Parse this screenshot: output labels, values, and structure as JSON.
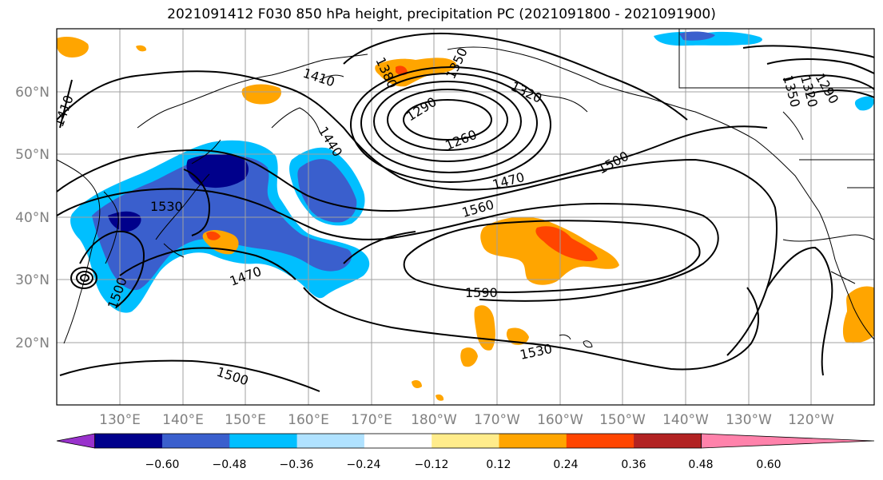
{
  "title": "2021091412 F030 850 hPa height, precipitation PC (2021091800 - 2021091900)",
  "lon_labels": [
    "130°E",
    "140°E",
    "150°E",
    "160°E",
    "170°E",
    "180°W",
    "170°W",
    "160°W",
    "150°W",
    "140°W",
    "130°W",
    "120°W"
  ],
  "lat_labels": [
    "60°N",
    "50°N",
    "40°N",
    "30°N",
    "20°N"
  ],
  "contour_labels": [
    "1410",
    "1410",
    "1380",
    "1350",
    "1320",
    "1290",
    "1260",
    "1440",
    "1470",
    "1500",
    "1560",
    "1530",
    "1470",
    "1500",
    "1590",
    "1530",
    "1500",
    "1350",
    "1320",
    "1290"
  ],
  "colorbar": {
    "colors": [
      "#9932cc",
      "#00008b",
      "#3a5fcd",
      "#00bfff",
      "#b0e2ff",
      "#ffffff",
      "#ffec8b",
      "#ffa500",
      "#ff4500",
      "#b22222",
      "#ff82ab"
    ],
    "ticks": [
      "−0.60",
      "−0.48",
      "−0.36",
      "−0.24",
      "−0.12",
      "0.12",
      "0.24",
      "0.36",
      "0.48",
      "0.60"
    ]
  }
}
